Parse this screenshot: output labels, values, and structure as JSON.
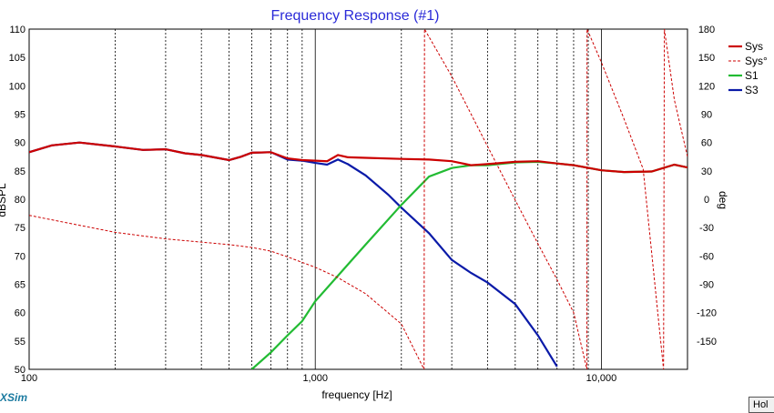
{
  "app": {
    "brand": "XSim",
    "hold_label": "Hol"
  },
  "chart_data": {
    "type": "line",
    "title": "Frequency Response (#1)",
    "xlabel": "frequency [Hz]",
    "ylabel": "dBSPL",
    "y2label": "deg",
    "xscale": "log",
    "xlim": [
      100,
      20000
    ],
    "ylim": [
      50,
      110
    ],
    "y2lim": [
      -180,
      180
    ],
    "x_tick_labels": [
      "100",
      "1,000",
      "10,000"
    ],
    "x_tick_values": [
      100,
      1000,
      10000
    ],
    "y_ticks": [
      50,
      55,
      60,
      65,
      70,
      75,
      80,
      85,
      90,
      95,
      100,
      105,
      110
    ],
    "y2_ticks": [
      -150,
      -120,
      -90,
      -60,
      -30,
      0,
      30,
      60,
      90,
      120,
      150,
      180
    ],
    "grid": true,
    "legend_position": "right",
    "colors": {
      "Sys": "#cc0000",
      "Sys°": "#cc0000",
      "S1": "#22bb33",
      "S3": "#0a1aa8"
    },
    "series": [
      {
        "name": "S3",
        "axis": "left",
        "style": "solid",
        "x": [
          100,
          120,
          150,
          200,
          250,
          300,
          350,
          400,
          500,
          550,
          600,
          700,
          800,
          900,
          1000,
          1100,
          1200,
          1300,
          1500,
          1800,
          2000,
          2500,
          3000,
          3500,
          4000,
          5000,
          6000,
          7000
        ],
        "y": [
          88.3,
          89.5,
          90,
          89.3,
          88.7,
          88.8,
          88.1,
          87.8,
          86.9,
          87.5,
          88.2,
          88.3,
          87,
          86.8,
          86.4,
          86.1,
          87,
          86.2,
          84.2,
          80.8,
          78.5,
          74,
          69.3,
          67,
          65.3,
          61.5,
          56,
          50.5
        ]
      },
      {
        "name": "S1",
        "axis": "left",
        "style": "solid",
        "x": [
          600,
          700,
          800,
          900,
          1000,
          1200,
          1500,
          2000,
          2500,
          3000,
          3500,
          4000,
          5000,
          6000,
          7000,
          8000,
          10000,
          12000,
          15000,
          18000,
          20000
        ],
        "y": [
          50,
          53,
          56,
          58.5,
          62,
          66.5,
          72,
          79,
          84,
          85.5,
          86,
          86,
          86.5,
          86.6,
          86.3,
          86,
          85.1,
          84.8,
          84.9,
          86.1,
          85.6
        ]
      },
      {
        "name": "Sys",
        "axis": "left",
        "style": "solid",
        "x": [
          100,
          120,
          150,
          200,
          250,
          300,
          350,
          400,
          500,
          550,
          600,
          700,
          800,
          900,
          1000,
          1100,
          1200,
          1300,
          1500,
          2000,
          2500,
          3000,
          3500,
          4000,
          5000,
          6000,
          7000,
          8000,
          10000,
          12000,
          15000,
          18000,
          20000
        ],
        "y": [
          88.3,
          89.5,
          90,
          89.3,
          88.7,
          88.8,
          88.1,
          87.8,
          86.9,
          87.5,
          88.2,
          88.3,
          87.2,
          86.9,
          86.8,
          86.7,
          87.8,
          87.4,
          87.3,
          87.1,
          87,
          86.7,
          86,
          86.2,
          86.6,
          86.7,
          86.3,
          86,
          85.1,
          84.8,
          84.9,
          86.1,
          85.6
        ]
      },
      {
        "name": "Sys°",
        "axis": "right",
        "style": "dashed",
        "x": [
          100,
          200,
          300,
          500,
          600,
          700,
          800,
          1000,
          1200,
          1500,
          2000,
          2400,
          2410,
          3000,
          4000,
          5000,
          6000,
          7000,
          8000,
          8900,
          8910,
          10000,
          12000,
          14000,
          16500,
          16600,
          18000,
          20000
        ],
        "y": [
          -17,
          -35,
          -42,
          -48,
          -51,
          -55,
          -61,
          -72,
          -83,
          -100,
          -132,
          -180,
          180,
          130,
          56,
          -1,
          -47,
          -85,
          -120,
          -180,
          180,
          145,
          85,
          32,
          -180,
          180,
          105,
          45
        ]
      }
    ]
  }
}
